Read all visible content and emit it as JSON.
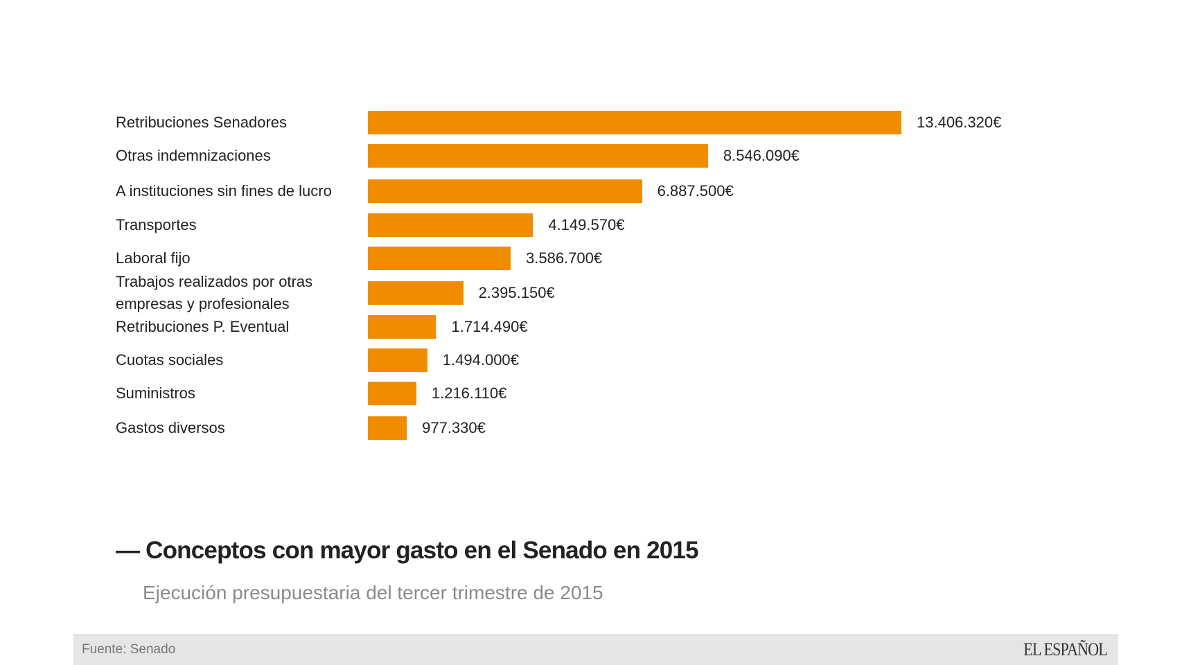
{
  "chart_data": {
    "type": "bar",
    "orientation": "horizontal",
    "title": "— Conceptos con mayor gasto en el Senado en 2015",
    "subtitle": "Ejecución presupuestaria del tercer trimestre de 2015",
    "categories": [
      "Retribuciones Senadores",
      "Otras indemnizaciones",
      "A instituciones sin fines de lucro",
      "Transportes",
      "Laboral fijo",
      "Trabajos realizados por otras empresas y profesionales",
      "Retribuciones P. Eventual",
      "Cuotas sociales",
      "Suministros",
      "Gastos diversos"
    ],
    "values": [
      13406320,
      8546090,
      6887500,
      4149570,
      3586700,
      2395150,
      1714490,
      1494000,
      1216110,
      977330
    ],
    "value_labels": [
      "13.406.320€",
      "8.546.090€",
      "6.887.500€",
      "4.149.570€",
      "3.586.700€",
      "2.395.150€",
      "1.714.490€",
      "1.494.000€",
      "1.216.110€",
      "977.330€"
    ],
    "bar_color": "#f08c00",
    "xlabel": "",
    "ylabel": "",
    "grid": false
  },
  "footer": {
    "source": "Fuente: Senado",
    "logo": "EL ESPAÑOL"
  }
}
